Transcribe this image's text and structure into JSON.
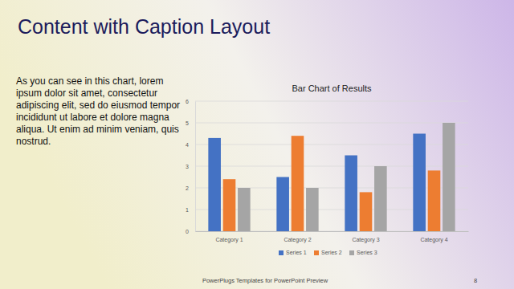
{
  "slide": {
    "title": "Content with Caption Layout",
    "caption": "As you can see in this chart, lorem ipsum dolor sit amet, consectetur adipiscing elit, sed do eiusmod tempor incididunt ut labore et dolore magna aliqua. Ut enim ad minim veniam, quis nostrud.",
    "footer": "PowerPlugs Templates for PowerPoint Preview",
    "page_number": "8"
  },
  "chart_data": {
    "type": "bar",
    "title": "Bar Chart of Results",
    "categories": [
      "Category 1",
      "Category 2",
      "Category 3",
      "Category 4"
    ],
    "series": [
      {
        "name": "Series 1",
        "color": "#4472c4",
        "values": [
          4.3,
          2.5,
          3.5,
          4.5
        ]
      },
      {
        "name": "Series 2",
        "color": "#ed7d31",
        "values": [
          2.4,
          4.4,
          1.8,
          2.8
        ]
      },
      {
        "name": "Series 3",
        "color": "#a5a5a5",
        "values": [
          2,
          2,
          3,
          5
        ]
      }
    ],
    "ylim": [
      0,
      6
    ],
    "yticks": [
      0,
      1,
      2,
      3,
      4,
      5,
      6
    ],
    "grid": true,
    "legend": "bottom"
  }
}
